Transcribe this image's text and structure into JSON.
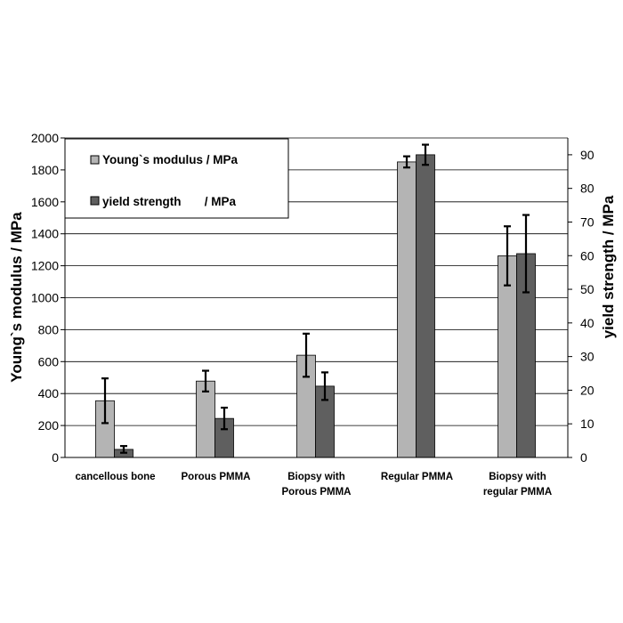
{
  "chart_data": {
    "type": "bar",
    "categories": [
      [
        "cancellous bone"
      ],
      [
        "Porous PMMA"
      ],
      [
        "Biopsy with",
        "Porous PMMA"
      ],
      [
        "Regular PMMA"
      ],
      [
        "Biopsy with",
        "regular PMMA"
      ]
    ],
    "series": [
      {
        "name": "Young`s modulus / MPa",
        "axis": "left",
        "color": "#b4b4b4",
        "values": [
          355,
          478,
          640,
          1850,
          1262
        ],
        "error": [
          140,
          65,
          135,
          35,
          185
        ]
      },
      {
        "name": "yield strength       / MPa",
        "axis": "right",
        "color": "#5f5f5f",
        "values": [
          2.4,
          11.6,
          21.2,
          90,
          60.6
        ],
        "error": [
          1.0,
          3.2,
          4.1,
          3.0,
          11.5
        ]
      }
    ],
    "y_left": {
      "label": "Young`s modulus / MPa",
      "range": [
        0,
        2000
      ],
      "ticks": [
        0,
        200,
        400,
        600,
        800,
        1000,
        1200,
        1400,
        1600,
        1800,
        2000
      ]
    },
    "y_right": {
      "label": "yield strength / MPa",
      "range": [
        0,
        95
      ],
      "ticks": [
        0,
        10,
        20,
        30,
        40,
        50,
        60,
        70,
        80,
        90
      ]
    },
    "grid": true,
    "legend_position": "top-left"
  }
}
